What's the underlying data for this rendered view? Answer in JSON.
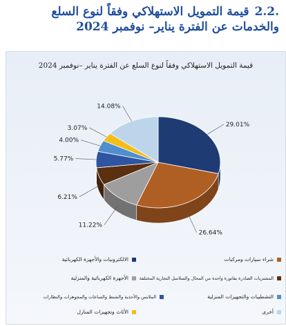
{
  "page": {
    "number": ".2.2",
    "title": "قيمة التمويل الاستهلاكي وفقاً لنوع السلع والخدمات عن الفترة يناير– نوفمبر 2024"
  },
  "chart_data": {
    "type": "pie",
    "title": "قيمة التمويل الاستهلاكي وفقاً لنوع السلع عن الفترة يناير –نوفمبر 2024",
    "slices": [
      {
        "label": "الالكترونيات والأجهزة الكهربائية",
        "value": 29.01,
        "text": "29.01%",
        "color": "#1f3b73"
      },
      {
        "label": "شراء سيارات ومركبات",
        "value": 26.64,
        "text": "26.64%",
        "color": "#b05f24"
      },
      {
        "label": "الأجهزة الكهربائية والمنزلية",
        "value": 11.22,
        "text": "11.22%",
        "color": "#9e9e9e"
      },
      {
        "label": "المشتريات الصادرة بفاتورة واحدة من المحال والسلاسل التجارية المختلفة",
        "value": 6.21,
        "text": "6.21%",
        "color": "#5a3010"
      },
      {
        "label": "الملابس والأحذية والشنط والساعات والمجوهرات والنظارات",
        "value": 5.77,
        "text": "5.77%",
        "color": "#2f55a0"
      },
      {
        "label": "التشطيبات والتجهيزات المنزلية",
        "value": 4.0,
        "text": "4.00%",
        "color": "#4f8fce"
      },
      {
        "label": "الأثاث وتجهيزات المنازل",
        "value": 3.07,
        "text": "3.07%",
        "color": "#f2be1a"
      },
      {
        "label": "أخرى",
        "value": 14.08,
        "text": "14.08%",
        "color": "#bcd5ea"
      }
    ]
  }
}
